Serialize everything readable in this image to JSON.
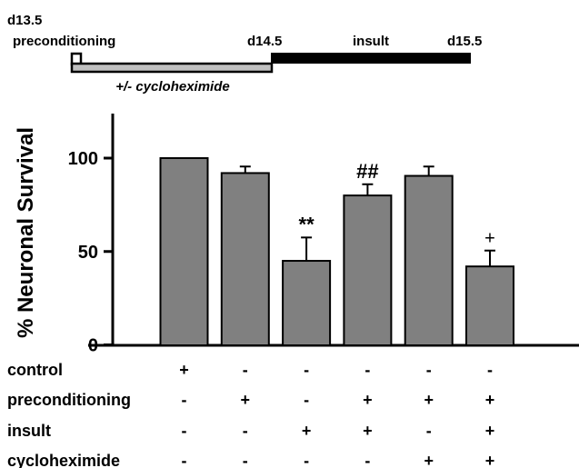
{
  "timeline": {
    "labels": [
      {
        "key": "d13_5",
        "text": "d13.5"
      },
      {
        "key": "precond",
        "text": "preconditioning"
      },
      {
        "key": "d14_5",
        "text": "d14.5"
      },
      {
        "key": "insult",
        "text": "insult"
      },
      {
        "key": "d15_5",
        "text": "d15.5"
      }
    ],
    "drug_label": "+/- cycloheximide",
    "colors": {
      "drug_bar": "#c0c0c0",
      "insult_bar": "#000000"
    }
  },
  "chart_data": {
    "type": "bar",
    "ylabel": "% Neuronal Survival",
    "ylim": [
      0,
      125
    ],
    "yticks": [
      0,
      50,
      100
    ],
    "bar_color": "#808080",
    "values": [
      100,
      92,
      45,
      80,
      90.5,
      42
    ],
    "errors": [
      0,
      3.5,
      12.5,
      6,
      5,
      8.5
    ],
    "annotations": [
      "",
      "",
      "**",
      "##",
      "",
      "+"
    ],
    "conditions": [
      {
        "label": "control",
        "marks": [
          "+",
          "-",
          "-",
          "-",
          "-",
          "-"
        ]
      },
      {
        "label": "preconditioning",
        "marks": [
          "-",
          "+",
          "-",
          "+",
          "+",
          "+"
        ]
      },
      {
        "label": "insult",
        "marks": [
          "-",
          "-",
          "+",
          "+",
          "-",
          "+"
        ]
      },
      {
        "label": "cycloheximide",
        "marks": [
          "-",
          "-",
          "-",
          "-",
          "+",
          "+"
        ]
      }
    ]
  }
}
